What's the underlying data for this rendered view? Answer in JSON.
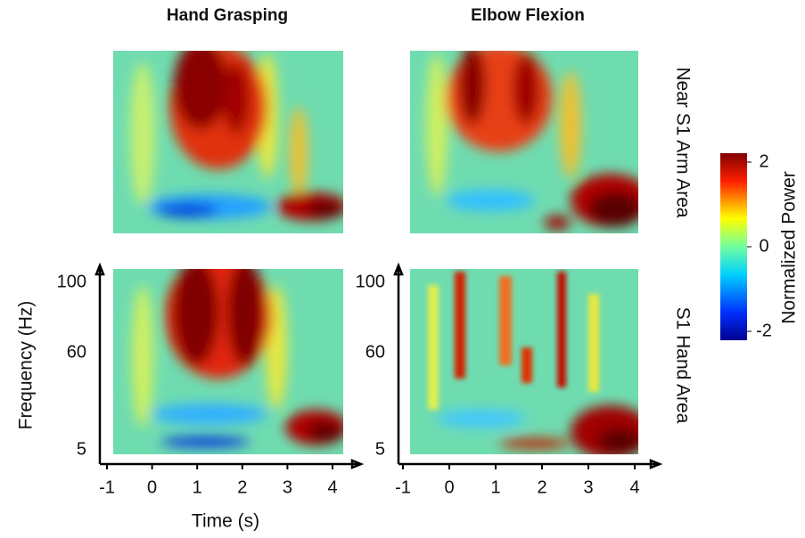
{
  "column_titles": [
    "Hand Grasping",
    "Elbow Flexion"
  ],
  "row_labels": [
    "Near S1 Arm Area",
    "S1 Hand Area"
  ],
  "x_axis": {
    "label": "Time (s)",
    "ticks": [
      -1,
      0,
      1,
      2,
      3,
      4
    ],
    "lim": [
      -1,
      4
    ]
  },
  "y_axis": {
    "label": "Frequency (Hz)",
    "ticks": [
      5,
      60,
      100
    ],
    "lim": [
      5,
      100
    ]
  },
  "colorbar": {
    "label": "Normalized Power",
    "ticks": [
      -2,
      0,
      2
    ],
    "lim": [
      -2,
      2
    ]
  }
}
